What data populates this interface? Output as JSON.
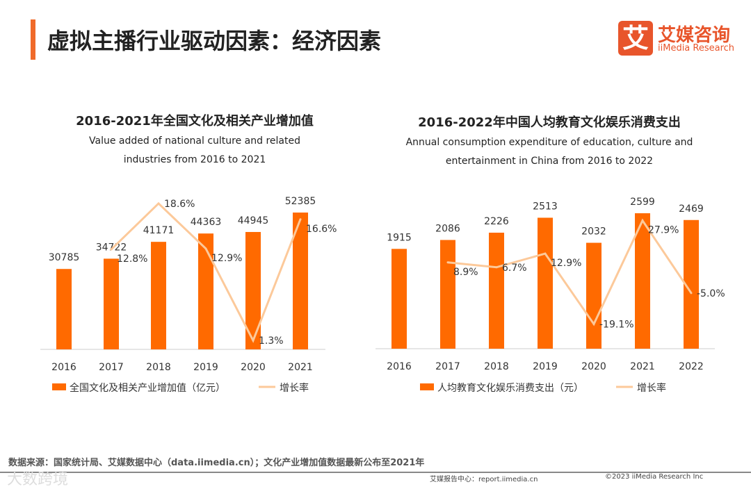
{
  "header": {
    "title": "虚拟主播行业驱动因素：经济因素",
    "logo_mark": "艾",
    "logo_cn": "艾媒咨询",
    "logo_en": "iiMedia Research"
  },
  "chart_data": [
    {
      "type": "bar+line",
      "title": "2016-2021年全国文化及相关产业增加值",
      "subtitle_lines": [
        "Value added of national culture and related",
        "industries from 2016 to 2021"
      ],
      "categories": [
        "2016",
        "2017",
        "2018",
        "2019",
        "2020",
        "2021"
      ],
      "series": [
        {
          "name": "全国文化及相关产业增加值（亿元）",
          "type": "bar",
          "color": "#ff6a00",
          "values": [
            30785,
            34722,
            41171,
            44363,
            44945,
            52385
          ]
        },
        {
          "name": "增长率",
          "type": "line",
          "color": "#fcc99a",
          "values": [
            null,
            12.8,
            18.6,
            12.9,
            1.3,
            16.6
          ],
          "labels": [
            "",
            "12.8%",
            "18.6%",
            "12.9%",
            "1.3%",
            "16.6%"
          ]
        }
      ],
      "bar_max": 52385,
      "line_range": [
        0,
        18.6
      ]
    },
    {
      "type": "bar+line",
      "title": "2016-2022年中国人均教育文化娱乐消费支出",
      "subtitle_lines": [
        "Annual consumption expenditure of education, culture and",
        "entertainment in China from 2016 to 2022"
      ],
      "categories": [
        "2016",
        "2017",
        "2018",
        "2019",
        "2020",
        "2021",
        "2022"
      ],
      "series": [
        {
          "name": "人均教育文化娱乐消费支出（元）",
          "type": "bar",
          "color": "#ff6a00",
          "values": [
            1915,
            2086,
            2226,
            2513,
            2032,
            2599,
            2469
          ]
        },
        {
          "name": "增长率",
          "type": "line",
          "color": "#fcc99a",
          "values": [
            null,
            8.9,
            6.7,
            12.9,
            -19.1,
            27.9,
            -5.0
          ],
          "labels": [
            "",
            "8.9%",
            "6.7%",
            "12.9%",
            "-19.1%",
            "27.9%",
            "-5.0%"
          ]
        }
      ],
      "bar_max": 2599,
      "line_range": [
        -19.1,
        27.9
      ]
    }
  ],
  "footer": {
    "source": "数据来源：国家统计局、艾媒数据中心（data.iimedia.cn）；文化产业增加值数据最新公布至2021年",
    "report": "艾媒报告中心：report.iimedia.cn",
    "copyright": "©2023  iiMedia Research  Inc",
    "watermark": "大数跨境"
  }
}
